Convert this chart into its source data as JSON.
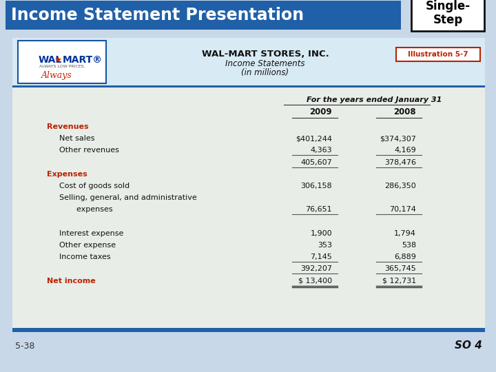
{
  "title": "Income Statement Presentation",
  "tab_label": "Single-\nStep",
  "illustration": "Illustration 5-7",
  "header1": "WAL-MART STORES, INC.",
  "header2": "Income Statements",
  "header3": "(in millions)",
  "col_header": "For the years ended January 31",
  "col2009": "2009",
  "col2008": "2008",
  "bg_color": "#c8d8e8",
  "table_bg": "#e8ede8",
  "header_bg": "#d8eaf4",
  "blue_title_bg": "#2060a8",
  "red_text": "#bb2200",
  "dark_text": "#111111",
  "rows": [
    {
      "label": "Revenues",
      "v2009": "",
      "v2008": "",
      "style": "bold_red",
      "indent": 0
    },
    {
      "label": "Net sales",
      "v2009": "$401,244",
      "v2008": "$374,307",
      "style": "normal",
      "indent": 1
    },
    {
      "label": "Other revenues",
      "v2009": "4,363",
      "v2008": "4,169",
      "style": "underline",
      "indent": 1
    },
    {
      "label": "",
      "v2009": "405,607",
      "v2008": "378,476",
      "style": "subtotal",
      "indent": 0
    },
    {
      "label": "Expenses",
      "v2009": "",
      "v2008": "",
      "style": "bold_red",
      "indent": 0
    },
    {
      "label": "Cost of goods sold",
      "v2009": "306,158",
      "v2008": "286,350",
      "style": "normal",
      "indent": 1
    },
    {
      "label": "Selling, general, and administrative",
      "v2009": "",
      "v2008": "",
      "style": "normal",
      "indent": 1
    },
    {
      "label": "  expenses",
      "v2009": "76,651",
      "v2008": "70,174",
      "style": "underline",
      "indent": 2
    },
    {
      "label": "",
      "v2009": "",
      "v2008": "",
      "style": "spacer",
      "indent": 0
    },
    {
      "label": "Interest expense",
      "v2009": "1,900",
      "v2008": "1,794",
      "style": "normal",
      "indent": 1
    },
    {
      "label": "Other expense",
      "v2009": "353",
      "v2008": "538",
      "style": "normal",
      "indent": 1
    },
    {
      "label": "Income taxes",
      "v2009": "7,145",
      "v2008": "6,889",
      "style": "underline",
      "indent": 1
    },
    {
      "label": "",
      "v2009": "392,207",
      "v2008": "365,745",
      "style": "subtotal",
      "indent": 0
    },
    {
      "label": "Net income",
      "v2009": "$ 13,400",
      "v2008": "$ 12,731",
      "style": "bold_red_double",
      "indent": 0
    }
  ],
  "footer_left": "5-38",
  "footer_right": "SO 4"
}
